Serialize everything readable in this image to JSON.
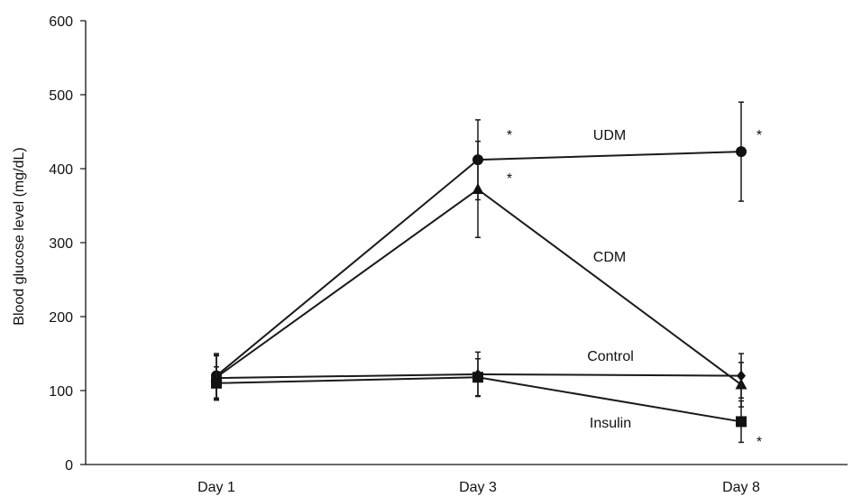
{
  "chart_data": {
    "type": "line",
    "title": "",
    "xlabel": "",
    "ylabel": "Blood glucose level (mg/dL)",
    "categories": [
      "Day 1",
      "Day 3",
      "Day 8"
    ],
    "ylim": [
      0,
      600
    ],
    "yticks": [
      0,
      100,
      200,
      300,
      400,
      500,
      600
    ],
    "grid": false,
    "legend": "none",
    "series": [
      {
        "name": "UDM",
        "marker": "circle",
        "values": [
          120,
          412,
          423
        ],
        "err": [
          30,
          54,
          67
        ],
        "significance": [
          "",
          "*",
          "*"
        ]
      },
      {
        "name": "CDM",
        "marker": "triangle",
        "values": [
          118,
          372,
          108
        ],
        "err": [
          30,
          65,
          30
        ],
        "significance": [
          "",
          "*",
          ""
        ]
      },
      {
        "name": "Control",
        "marker": "diamond",
        "values": [
          117,
          122,
          120
        ],
        "err": [
          30,
          30,
          30
        ],
        "significance": [
          "",
          "",
          ""
        ]
      },
      {
        "name": "Insulin",
        "marker": "square",
        "values": [
          110,
          118,
          58
        ],
        "err": [
          22,
          25,
          28
        ],
        "significance": [
          "",
          "",
          "*"
        ]
      }
    ],
    "colors": {
      "line": "#1a1a1a",
      "marker": "#111111",
      "axis": "#111111"
    }
  }
}
